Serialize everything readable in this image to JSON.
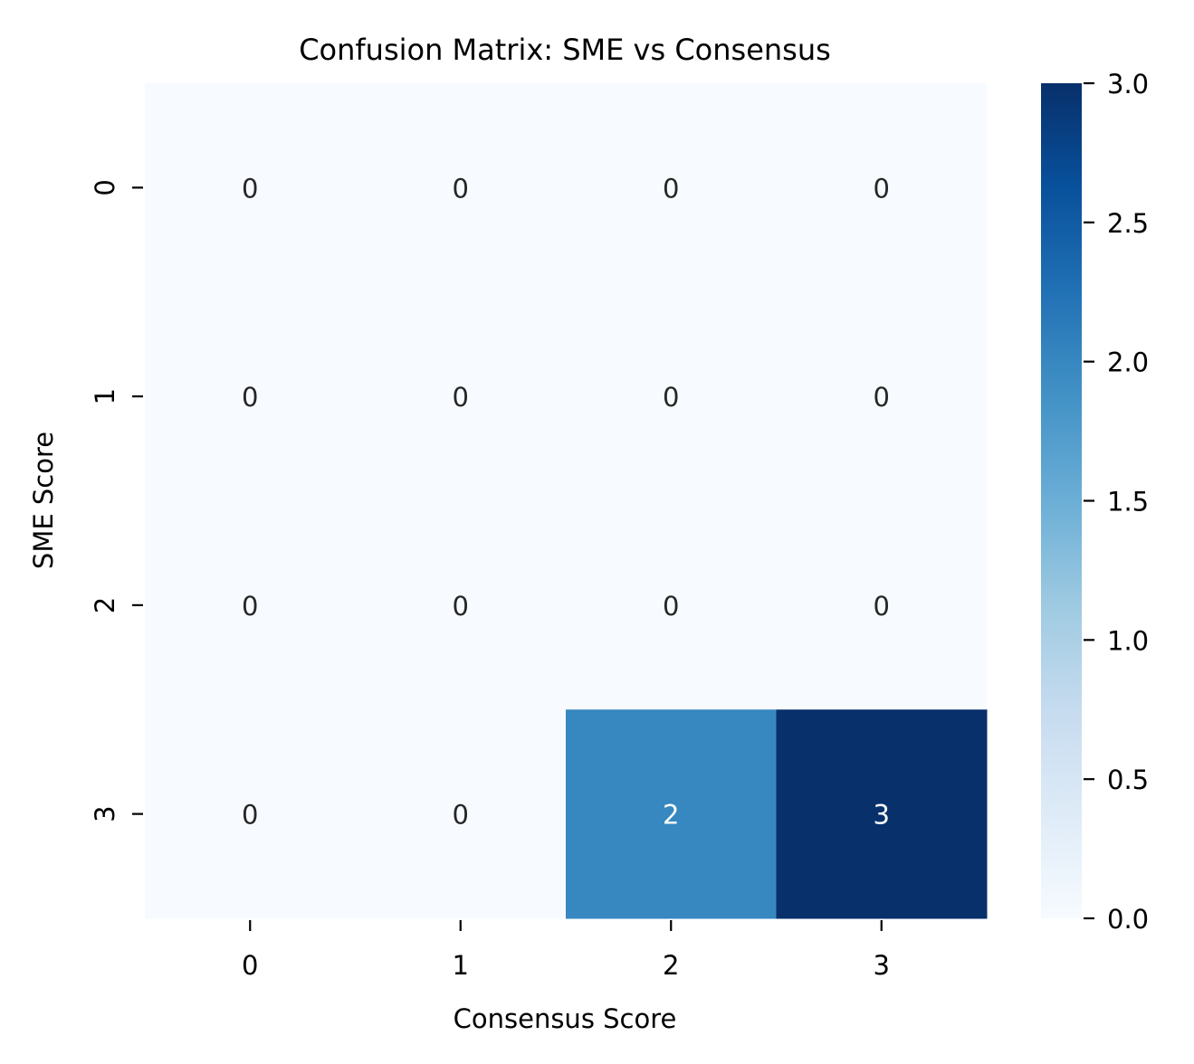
{
  "chart_data": {
    "type": "heatmap",
    "title": "Confusion Matrix: SME vs Consensus",
    "xlabel": "Consensus Score",
    "ylabel": "SME Score",
    "x_categories": [
      "0",
      "1",
      "2",
      "3"
    ],
    "y_categories": [
      "0",
      "1",
      "2",
      "3"
    ],
    "values": [
      [
        0,
        0,
        0,
        0
      ],
      [
        0,
        0,
        0,
        0
      ],
      [
        0,
        0,
        0,
        0
      ],
      [
        0,
        0,
        2,
        3
      ]
    ],
    "colormap": "Blues",
    "color_range": [
      0.0,
      3.0
    ],
    "colorbar_ticks": [
      "0.0",
      "0.5",
      "1.0",
      "1.5",
      "2.0",
      "2.5",
      "3.0"
    ],
    "annotations": true,
    "annotation_colors": {
      "light_cell": "#262626",
      "dark_cell": "#ffffff"
    }
  }
}
